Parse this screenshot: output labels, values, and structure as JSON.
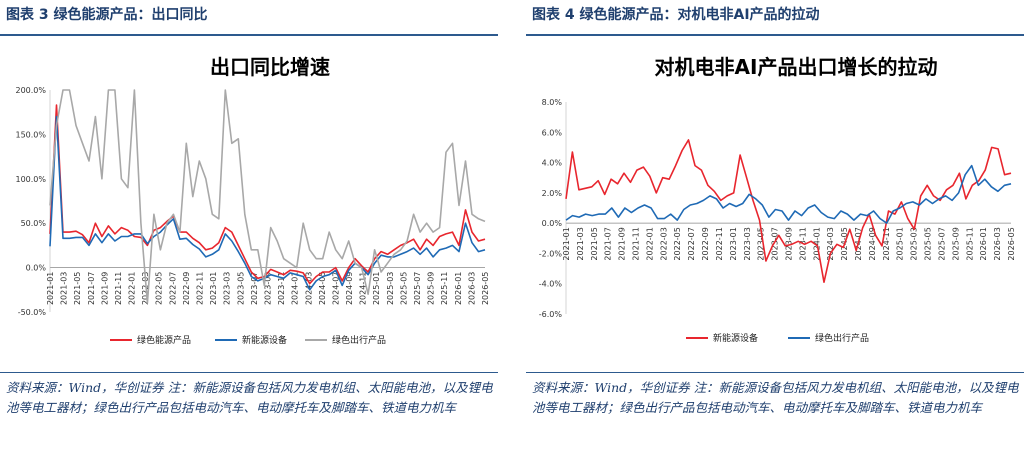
{
  "left": {
    "fig_title": "图表 3  绿色能源产品：出口同比",
    "note": "资料来源：Wind，华创证券 注：新能源设备包括风力发电机组、太阳能电池，以及锂电池等电工器材；绿色出行产品包括电动汽车、电动摩托车及脚踏车、铁道电力机车"
  },
  "right": {
    "fig_title": "图表 4  绿色能源产品：对机电非AI产品的拉动",
    "note": "资料来源：Wind，华创证券 注：新能源设备包括风力发电机组、太阳能电池，以及锂电池等电工器材；绿色出行产品包括电动汽车、电动摩托车及脚踏车、铁道电力机车"
  },
  "chart_data": [
    {
      "type": "line",
      "title": "出口同比增速",
      "xlabel": "",
      "ylabel": "",
      "ylim": [
        -50,
        200
      ],
      "y_ticks": [
        "-50.0%",
        "0.0%",
        "50.0%",
        "100.0%",
        "150.0%",
        "200.0%"
      ],
      "x_ticks": [
        "2021-01",
        "2021-03",
        "2021-05",
        "2021-07",
        "2021-09",
        "2021-11",
        "2022-01",
        "2022-03",
        "2022-05",
        "2022-07",
        "2022-09",
        "2022-11",
        "2023-01",
        "2023-03",
        "2023-05",
        "2023-07",
        "2023-09",
        "2023-11",
        "2024-01",
        "2024-03",
        "2024-05",
        "2024-07",
        "2024-09",
        "2024-11",
        "2025-01",
        "2025-03",
        "2025-05",
        "2025-07",
        "2025-09",
        "2025-11",
        "2026-01",
        "2026-03",
        "2026-05"
      ],
      "legend_position": "bottom",
      "series": [
        {
          "name": "绿色能源产品",
          "color": "#e8262e",
          "values": [
            38,
            183,
            40,
            40,
            41,
            37,
            28,
            50,
            35,
            47,
            38,
            45,
            42,
            35,
            34,
            25,
            42,
            45,
            52,
            58,
            40,
            40,
            33,
            28,
            20,
            22,
            28,
            45,
            40,
            25,
            10,
            -5,
            -12,
            -10,
            -2,
            -5,
            -8,
            -3,
            -4,
            -6,
            -18,
            -10,
            -5,
            -5,
            0,
            -15,
            0,
            10,
            2,
            -5,
            10,
            18,
            15,
            20,
            25,
            28,
            32,
            20,
            32,
            25,
            35,
            38,
            40,
            25,
            65,
            40,
            30,
            32
          ]
        },
        {
          "name": "新能源设备",
          "color": "#1f6ab5",
          "values": [
            24,
            170,
            33,
            33,
            34,
            34,
            25,
            38,
            28,
            38,
            30,
            35,
            35,
            38,
            38,
            27,
            35,
            40,
            48,
            55,
            32,
            33,
            26,
            21,
            12,
            15,
            20,
            38,
            30,
            18,
            5,
            -10,
            -15,
            -12,
            -8,
            -10,
            -12,
            -6,
            -8,
            -10,
            -25,
            -15,
            -10,
            -8,
            -3,
            -20,
            -3,
            5,
            0,
            -8,
            5,
            14,
            12,
            12,
            15,
            18,
            22,
            15,
            22,
            12,
            20,
            22,
            25,
            18,
            50,
            28,
            18,
            20
          ]
        },
        {
          "name": "绿色出行产品",
          "color": "#a8a8a8",
          "values": [
            70,
            160,
            210,
            210,
            160,
            140,
            120,
            170,
            100,
            200,
            210,
            100,
            90,
            200,
            50,
            -40,
            60,
            20,
            50,
            60,
            40,
            140,
            80,
            120,
            100,
            60,
            55,
            220,
            140,
            145,
            60,
            20,
            20,
            -20,
            45,
            30,
            10,
            5,
            0,
            50,
            20,
            10,
            10,
            40,
            20,
            10,
            30,
            5,
            0,
            -30,
            20,
            -5,
            5,
            15,
            20,
            30,
            60,
            40,
            50,
            40,
            45,
            130,
            140,
            70,
            120,
            60,
            55,
            52
          ]
        }
      ]
    },
    {
      "type": "line",
      "title": "对机电非AI产品出口增长的拉动",
      "xlabel": "",
      "ylabel": "",
      "ylim": [
        -6,
        8
      ],
      "y_ticks": [
        "-6.0%",
        "-4.0%",
        "-2.0%",
        "0.0%",
        "2.0%",
        "4.0%",
        "6.0%",
        "8.0%"
      ],
      "x_ticks": [
        "2021-01",
        "2021-03",
        "2021-05",
        "2021-07",
        "2021-09",
        "2021-11",
        "2022-01",
        "2022-03",
        "2022-05",
        "2022-07",
        "2022-09",
        "2022-11",
        "2023-01",
        "2023-03",
        "2023-05",
        "2023-07",
        "2023-09",
        "2023-11",
        "2024-01",
        "2024-03",
        "2024-05",
        "2024-07",
        "2024-09",
        "2024-11",
        "2025-01",
        "2025-03",
        "2025-05",
        "2025-07",
        "2025-09",
        "2025-11",
        "2026-01",
        "2026-03",
        "2026-05"
      ],
      "legend_position": "bottom",
      "series": [
        {
          "name": "新能源设备",
          "color": "#e8262e",
          "values": [
            1.6,
            4.7,
            2.2,
            2.3,
            2.4,
            2.8,
            1.9,
            2.9,
            2.6,
            3.3,
            2.7,
            3.5,
            3.7,
            3.1,
            2.0,
            3.0,
            2.9,
            3.8,
            4.8,
            5.5,
            3.8,
            3.5,
            2.5,
            2.1,
            1.5,
            1.8,
            2.0,
            4.5,
            3.0,
            1.5,
            0.2,
            -2.5,
            -1.5,
            -0.8,
            -1.5,
            -1.4,
            -1.2,
            -1.4,
            -1.2,
            -1.5,
            -3.9,
            -2.0,
            -1.4,
            -1.6,
            -0.4,
            -1.8,
            -0.3,
            0.6,
            -0.8,
            -1.5,
            0.8,
            0.6,
            1.4,
            0.3,
            -0.4,
            1.8,
            2.5,
            1.8,
            1.5,
            2.2,
            2.5,
            3.3,
            1.6,
            2.5,
            2.8,
            3.5,
            5.0,
            4.9,
            3.2,
            3.3
          ]
        },
        {
          "name": "绿色出行产品",
          "color": "#1f6ab5",
          "values": [
            0.2,
            0.5,
            0.4,
            0.6,
            0.5,
            0.6,
            0.6,
            1.0,
            0.4,
            1.0,
            0.7,
            1.0,
            1.2,
            1.0,
            0.3,
            0.3,
            0.6,
            0.2,
            0.9,
            1.2,
            1.3,
            1.5,
            1.8,
            1.6,
            1.0,
            1.3,
            1.1,
            1.3,
            1.9,
            1.6,
            1.2,
            0.4,
            0.9,
            0.8,
            0.2,
            0.8,
            0.5,
            1.0,
            1.2,
            0.7,
            0.4,
            0.3,
            0.8,
            0.6,
            0.2,
            0.6,
            0.5,
            0.8,
            0.3,
            0.0,
            0.8,
            1.0,
            1.3,
            1.4,
            1.2,
            1.6,
            1.3,
            1.6,
            1.8,
            1.5,
            2.0,
            3.2,
            3.8,
            2.5,
            2.9,
            2.4,
            2.1,
            2.5,
            2.6
          ]
        }
      ]
    }
  ]
}
